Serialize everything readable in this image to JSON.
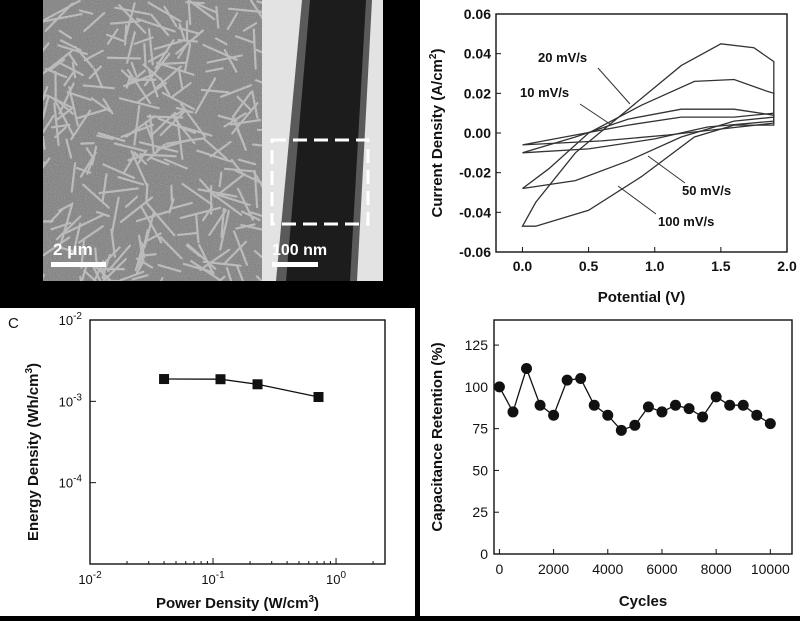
{
  "images": {
    "sem_scale_label": "2 μm",
    "tem_scale_label": "100 nm"
  },
  "chart_data": [
    {
      "type": "line",
      "xlabel": "Potential (V)",
      "ylabel_main": "Current Density (A/cm",
      "ylabel_sup": "2",
      "ylabel_tail": ")",
      "xlim": [
        -0.2,
        2.0
      ],
      "ylim": [
        -0.06,
        0.06
      ],
      "x_ticks": [
        "0.0",
        "0.5",
        "1.0",
        "1.5",
        "2.0"
      ],
      "y_ticks": [
        "-0.06",
        "-0.04",
        "-0.02",
        "0.00",
        "0.02",
        "0.04",
        "0.06"
      ],
      "annotations": [
        "10 mV/s",
        "20 mV/s",
        "50 mV/s",
        "100 mV/s"
      ],
      "series": [
        {
          "name": "10 mV/s",
          "upper": [
            [
              0,
              -0.006
            ],
            [
              0.4,
              -0.001
            ],
            [
              0.8,
              0.004
            ],
            [
              1.2,
              0.008
            ],
            [
              1.6,
              0.008
            ],
            [
              1.9,
              0.01
            ]
          ],
          "lower": [
            [
              1.9,
              0.005
            ],
            [
              1.5,
              0.002
            ],
            [
              1.1,
              -0.001
            ],
            [
              0.6,
              -0.004
            ],
            [
              0,
              -0.006
            ]
          ]
        },
        {
          "name": "20 mV/s",
          "upper": [
            [
              0,
              -0.01
            ],
            [
              0.4,
              -0.002
            ],
            [
              0.8,
              0.007
            ],
            [
              1.2,
              0.012
            ],
            [
              1.6,
              0.012
            ],
            [
              1.9,
              0.009
            ]
          ],
          "lower": [
            [
              1.9,
              0.006
            ],
            [
              1.4,
              0.003
            ],
            [
              1.0,
              -0.003
            ],
            [
              0.5,
              -0.008
            ],
            [
              0,
              -0.01
            ]
          ]
        },
        {
          "name": "50 mV/s",
          "upper": [
            [
              0,
              -0.028
            ],
            [
              0.2,
              -0.018
            ],
            [
              0.5,
              0.0
            ],
            [
              0.9,
              0.014
            ],
            [
              1.3,
              0.026
            ],
            [
              1.6,
              0.027
            ],
            [
              1.85,
              0.021
            ],
            [
              1.9,
              0.02
            ]
          ],
          "lower": [
            [
              1.9,
              0.008
            ],
            [
              1.6,
              0.006
            ],
            [
              1.2,
              -0.002
            ],
            [
              0.8,
              -0.014
            ],
            [
              0.4,
              -0.024
            ],
            [
              0,
              -0.028
            ]
          ]
        },
        {
          "name": "100 mV/s",
          "upper": [
            [
              0,
              -0.047
            ],
            [
              0.1,
              -0.035
            ],
            [
              0.4,
              -0.01
            ],
            [
              0.8,
              0.012
            ],
            [
              1.2,
              0.034
            ],
            [
              1.5,
              0.045
            ],
            [
              1.75,
              0.043
            ],
            [
              1.9,
              0.036
            ]
          ],
          "lower": [
            [
              1.9,
              0.004
            ],
            [
              1.6,
              0.004
            ],
            [
              1.3,
              -0.002
            ],
            [
              0.9,
              -0.022
            ],
            [
              0.5,
              -0.039
            ],
            [
              0.1,
              -0.047
            ],
            [
              0,
              -0.047
            ]
          ]
        }
      ]
    },
    {
      "type": "scatter",
      "panel_label": "C",
      "xscale": "log",
      "yscale": "log",
      "xlabel_main": "Power Density (W/cm",
      "xlabel_sup": "3",
      "xlabel_tail": ")",
      "ylabel_main": "Energy Density (Wh/cm",
      "ylabel_sup": "3",
      "ylabel_tail": ")",
      "xlim": [
        0.01,
        2.5
      ],
      "ylim": [
        1e-05,
        0.01
      ],
      "x_ticks": [
        {
          "base": "10",
          "exp": "-2",
          "value": 0.01
        },
        {
          "base": "10",
          "exp": "-1",
          "value": 0.1
        },
        {
          "base": "10",
          "exp": "0",
          "value": 1
        }
      ],
      "y_ticks": [
        {
          "base": "10",
          "exp": "-2",
          "value": 0.01
        },
        {
          "base": "10",
          "exp": "-3",
          "value": 0.001
        },
        {
          "base": "10",
          "exp": "-4",
          "value": 0.0001
        }
      ],
      "points": [
        [
          0.04,
          0.00188
        ],
        [
          0.115,
          0.00187
        ],
        [
          0.23,
          0.00162
        ],
        [
          0.72,
          0.00113
        ]
      ]
    },
    {
      "type": "scatter",
      "xlabel": "Cycles",
      "ylabel": "Capacitance Retention (%)",
      "xlim": [
        -200,
        10800
      ],
      "ylim": [
        0,
        140
      ],
      "x_ticks": [
        "0",
        "2000",
        "4000",
        "6000",
        "8000",
        "10000"
      ],
      "y_ticks": [
        "0",
        "25",
        "50",
        "75",
        "100",
        "125"
      ],
      "points": [
        [
          0,
          100
        ],
        [
          500,
          85
        ],
        [
          1000,
          111
        ],
        [
          1500,
          89
        ],
        [
          2000,
          83
        ],
        [
          2500,
          104
        ],
        [
          3000,
          105
        ],
        [
          3500,
          89
        ],
        [
          4000,
          83
        ],
        [
          4500,
          74
        ],
        [
          5000,
          77
        ],
        [
          5500,
          88
        ],
        [
          6000,
          85
        ],
        [
          6500,
          89
        ],
        [
          7000,
          87
        ],
        [
          7500,
          82
        ],
        [
          8000,
          94
        ],
        [
          8500,
          89
        ],
        [
          9000,
          89
        ],
        [
          9500,
          83
        ],
        [
          10000,
          78
        ]
      ]
    }
  ]
}
